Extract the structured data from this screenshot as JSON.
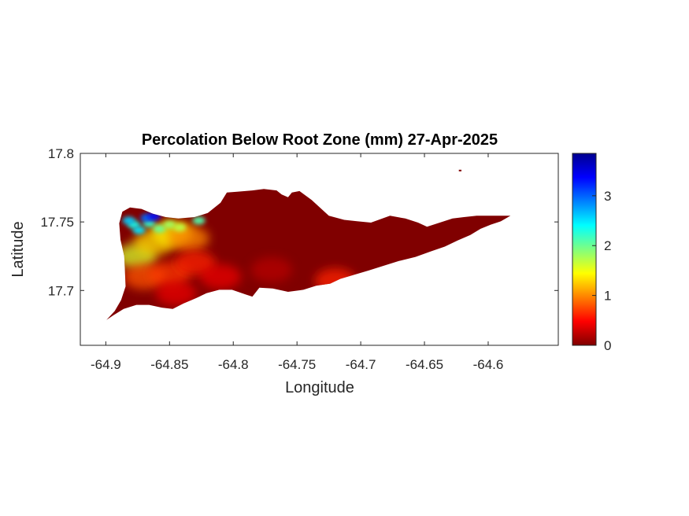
{
  "chart_data": {
    "type": "heatmap",
    "title": "Percolation Below Root Zone (mm) 27-Apr-2025",
    "xlabel": "Longitude",
    "ylabel": "Latitude",
    "xlim": [
      -64.92,
      -64.545
    ],
    "ylim": [
      17.66,
      17.8
    ],
    "xticks": [
      -64.9,
      -64.85,
      -64.8,
      -64.75,
      -64.7,
      -64.65,
      -64.6
    ],
    "xtick_labels": [
      "-64.9",
      "-64.85",
      "-64.8",
      "-64.75",
      "-64.7",
      "-64.65",
      "-64.6"
    ],
    "yticks": [
      17.7,
      17.75,
      17.8
    ],
    "ytick_labels": [
      "17.7",
      "17.75",
      "17.8"
    ],
    "colorbar": {
      "colormap": "jet",
      "range": [
        0,
        3.85
      ],
      "ticks": [
        0,
        1,
        2,
        3
      ],
      "tick_labels": [
        "0",
        "1",
        "2",
        "3"
      ],
      "colors": [
        "#00008f",
        "#0000ff",
        "#00ffff",
        "#ffff00",
        "#ff0000",
        "#800000"
      ]
    },
    "background_value": 0,
    "island_outline": [
      [
        -64.8995,
        17.6785
      ],
      [
        -64.893,
        17.685
      ],
      [
        -64.888,
        17.693
      ],
      [
        -64.8845,
        17.703
      ],
      [
        -64.885,
        17.714
      ],
      [
        -64.8855,
        17.725
      ],
      [
        -64.8885,
        17.737
      ],
      [
        -64.8895,
        17.749
      ],
      [
        -64.887,
        17.7575
      ],
      [
        -64.881,
        17.7605
      ],
      [
        -64.872,
        17.7595
      ],
      [
        -64.863,
        17.756
      ],
      [
        -64.853,
        17.7535
      ],
      [
        -64.843,
        17.7525
      ],
      [
        -64.8305,
        17.7535
      ],
      [
        -64.82,
        17.7565
      ],
      [
        -64.81,
        17.764
      ],
      [
        -64.805,
        17.7715
      ],
      [
        -64.797,
        17.772
      ],
      [
        -64.785,
        17.773
      ],
      [
        -64.776,
        17.774
      ],
      [
        -64.766,
        17.773
      ],
      [
        -64.762,
        17.77
      ],
      [
        -64.757,
        17.768
      ],
      [
        -64.754,
        17.7715
      ],
      [
        -64.748,
        17.7725
      ],
      [
        -64.7385,
        17.766
      ],
      [
        -64.725,
        17.7545
      ],
      [
        -64.713,
        17.7515
      ],
      [
        -64.703,
        17.7505
      ],
      [
        -64.692,
        17.7495
      ],
      [
        -64.677,
        17.7545
      ],
      [
        -64.665,
        17.7525
      ],
      [
        -64.655,
        17.7495
      ],
      [
        -64.648,
        17.7465
      ],
      [
        -64.638,
        17.7495
      ],
      [
        -64.628,
        17.7525
      ],
      [
        -64.619,
        17.7535
      ],
      [
        -64.609,
        17.7545
      ],
      [
        -64.598,
        17.7545
      ],
      [
        -64.588,
        17.7545
      ],
      [
        -64.5825,
        17.7545
      ],
      [
        -64.59,
        17.7505
      ],
      [
        -64.598,
        17.748
      ],
      [
        -64.606,
        17.745
      ],
      [
        -64.614,
        17.7405
      ],
      [
        -64.624,
        17.7365
      ],
      [
        -64.634,
        17.732
      ],
      [
        -64.645,
        17.7285
      ],
      [
        -64.657,
        17.7245
      ],
      [
        -64.67,
        17.7215
      ],
      [
        -64.682,
        17.718
      ],
      [
        -64.694,
        17.7145
      ],
      [
        -64.705,
        17.7115
      ],
      [
        -64.716,
        17.7085
      ],
      [
        -64.724,
        17.705
      ],
      [
        -64.735,
        17.7035
      ],
      [
        -64.745,
        17.7005
      ],
      [
        -64.757,
        17.699
      ],
      [
        -64.769,
        17.7015
      ],
      [
        -64.7795,
        17.702
      ],
      [
        -64.785,
        17.6955
      ],
      [
        -64.79,
        17.697
      ],
      [
        -64.801,
        17.7005
      ],
      [
        -64.811,
        17.7005
      ],
      [
        -64.821,
        17.698
      ],
      [
        -64.829,
        17.6945
      ],
      [
        -64.839,
        17.6905
      ],
      [
        -64.8475,
        17.6865
      ],
      [
        -64.856,
        17.6875
      ],
      [
        -64.866,
        17.6895
      ],
      [
        -64.876,
        17.6895
      ],
      [
        -64.886,
        17.6865
      ],
      [
        -64.894,
        17.682
      ]
    ],
    "islet": [
      [
        -64.623,
        17.7875
      ],
      [
        -64.621,
        17.7875
      ]
    ],
    "hotspots": [
      {
        "lon": -64.876,
        "lat": 17.725,
        "value": 1.6
      },
      {
        "lon": -64.862,
        "lat": 17.735,
        "value": 1.3
      },
      {
        "lon": -64.848,
        "lat": 17.742,
        "value": 1.4
      },
      {
        "lon": -64.835,
        "lat": 17.738,
        "value": 1.0
      },
      {
        "lon": -64.87,
        "lat": 17.71,
        "value": 0.8
      },
      {
        "lon": -64.85,
        "lat": 17.712,
        "value": 0.7
      },
      {
        "lon": -64.83,
        "lat": 17.72,
        "value": 0.6
      },
      {
        "lon": -64.81,
        "lat": 17.71,
        "value": 0.4
      },
      {
        "lon": -64.72,
        "lat": 17.707,
        "value": 0.6
      },
      {
        "lon": -64.77,
        "lat": 17.715,
        "value": 0.2
      },
      {
        "lon": -64.845,
        "lat": 17.698,
        "value": 0.4
      }
    ],
    "wet_patches": [
      {
        "lon": -64.878,
        "lat": 17.748,
        "value": 2.3
      },
      {
        "lon": -64.874,
        "lat": 17.744,
        "value": 2.5
      },
      {
        "lon": -64.866,
        "lat": 17.749,
        "value": 2.2
      },
      {
        "lon": -64.858,
        "lat": 17.745,
        "value": 2.0
      },
      {
        "lon": -64.868,
        "lat": 17.753,
        "value": 3.0
      },
      {
        "lon": -64.862,
        "lat": 17.754,
        "value": 3.3
      },
      {
        "lon": -64.882,
        "lat": 17.751,
        "value": 2.6
      },
      {
        "lon": -64.85,
        "lat": 17.748,
        "value": 1.8
      },
      {
        "lon": -64.842,
        "lat": 17.746,
        "value": 1.7
      },
      {
        "lon": -64.827,
        "lat": 17.751,
        "value": 2.1
      }
    ]
  }
}
